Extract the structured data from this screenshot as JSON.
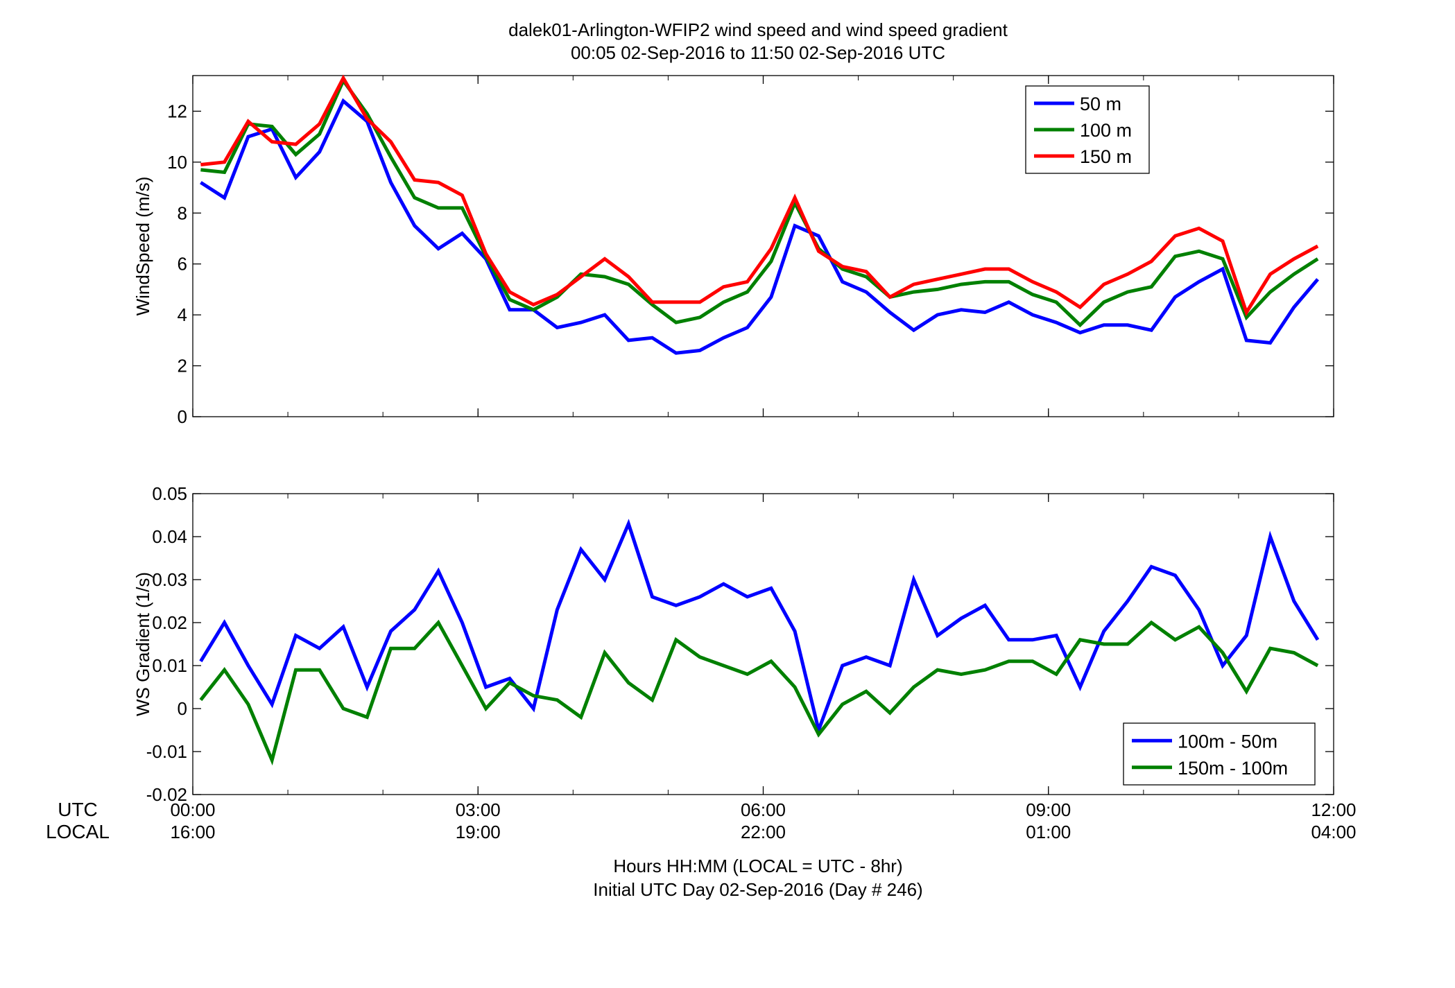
{
  "title": {
    "line1": "dalek01-Arlington-WFIP2  wind speed and wind speed gradient",
    "line2": "00:05 02-Sep-2016 to 11:50 02-Sep-2016  UTC"
  },
  "x_axis": {
    "row_labels": [
      "UTC",
      "LOCAL"
    ],
    "ticks_utc": [
      "00:00",
      "03:00",
      "06:00",
      "09:00",
      "12:00"
    ],
    "ticks_local": [
      "16:00",
      "19:00",
      "22:00",
      "01:00",
      "04:00"
    ],
    "xlabel_line1": "Hours HH:MM  (LOCAL = UTC - 8hr)",
    "xlabel_line2": "Initial UTC Day 02-Sep-2016 (Day # 246)"
  },
  "colors": {
    "blue": "#0000ff",
    "green": "#008000",
    "red": "#ff0000",
    "axis": "#000000"
  },
  "chart_data": [
    {
      "type": "line",
      "ylabel": "WindSpeed (m/s)",
      "xlim": [
        0,
        12
      ],
      "ylim": [
        0,
        13.4
      ],
      "yticks": [
        0,
        2,
        4,
        6,
        8,
        10,
        12
      ],
      "xticks": [
        0,
        3,
        6,
        9,
        12
      ],
      "legend_position": "top-right",
      "x": [
        0.083,
        0.333,
        0.583,
        0.833,
        1.083,
        1.333,
        1.583,
        1.833,
        2.083,
        2.333,
        2.583,
        2.833,
        3.083,
        3.333,
        3.583,
        3.833,
        4.083,
        4.333,
        4.583,
        4.833,
        5.083,
        5.333,
        5.583,
        5.833,
        6.083,
        6.333,
        6.583,
        6.833,
        7.083,
        7.333,
        7.583,
        7.833,
        8.083,
        8.333,
        8.583,
        8.833,
        9.083,
        9.333,
        9.583,
        9.833,
        10.083,
        10.333,
        10.583,
        10.833,
        11.083,
        11.333,
        11.583,
        11.833
      ],
      "series": [
        {
          "name": "50 m",
          "color": "#0000ff",
          "values": [
            9.2,
            8.6,
            11.0,
            11.3,
            9.4,
            10.4,
            12.4,
            11.6,
            9.2,
            7.5,
            6.6,
            7.2,
            6.2,
            4.2,
            4.2,
            3.5,
            3.7,
            4.0,
            3.0,
            3.1,
            2.5,
            2.6,
            3.1,
            3.5,
            4.7,
            7.5,
            7.1,
            5.3,
            4.9,
            4.1,
            3.4,
            4.0,
            4.2,
            4.1,
            4.5,
            4.0,
            3.7,
            3.3,
            3.6,
            3.6,
            3.4,
            4.7,
            5.3,
            5.8,
            3.0,
            2.9,
            4.3,
            5.4
          ]
        },
        {
          "name": "100 m",
          "color": "#008000",
          "values": [
            9.7,
            9.6,
            11.5,
            11.4,
            10.3,
            11.1,
            13.2,
            11.9,
            10.2,
            8.6,
            8.2,
            8.2,
            6.3,
            4.6,
            4.2,
            4.7,
            5.6,
            5.5,
            5.2,
            4.4,
            3.7,
            3.9,
            4.5,
            4.9,
            6.1,
            8.4,
            6.6,
            5.8,
            5.5,
            4.7,
            4.9,
            5.0,
            5.2,
            5.3,
            5.3,
            4.8,
            4.5,
            3.6,
            4.5,
            4.9,
            5.1,
            6.3,
            6.5,
            6.2,
            3.9,
            4.9,
            5.6,
            6.2
          ]
        },
        {
          "name": "150 m",
          "color": "#ff0000",
          "values": [
            9.9,
            10.0,
            11.6,
            10.8,
            10.7,
            11.5,
            13.3,
            11.7,
            10.8,
            9.3,
            9.2,
            8.7,
            6.4,
            4.9,
            4.4,
            4.8,
            5.5,
            6.2,
            5.5,
            4.5,
            4.5,
            4.5,
            5.1,
            5.3,
            6.6,
            8.6,
            6.5,
            5.9,
            5.7,
            4.7,
            5.2,
            5.4,
            5.6,
            5.8,
            5.8,
            5.3,
            4.9,
            4.3,
            5.2,
            5.6,
            6.1,
            7.1,
            7.4,
            6.9,
            4.1,
            5.6,
            6.2,
            6.7
          ]
        }
      ]
    },
    {
      "type": "line",
      "ylabel": "WS Gradient (1/s)",
      "xlim": [
        0,
        12
      ],
      "ylim": [
        -0.02,
        0.05
      ],
      "yticks": [
        -0.02,
        -0.01,
        0,
        0.01,
        0.02,
        0.03,
        0.04,
        0.05
      ],
      "ytick_labels": [
        "-0.02",
        "-0.01",
        "0",
        "0.01",
        "0.02",
        "0.03",
        "0.04",
        "0.05"
      ],
      "xticks": [
        0,
        3,
        6,
        9,
        12
      ],
      "legend_position": "bottom-right",
      "x": [
        0.083,
        0.333,
        0.583,
        0.833,
        1.083,
        1.333,
        1.583,
        1.833,
        2.083,
        2.333,
        2.583,
        2.833,
        3.083,
        3.333,
        3.583,
        3.833,
        4.083,
        4.333,
        4.583,
        4.833,
        5.083,
        5.333,
        5.583,
        5.833,
        6.083,
        6.333,
        6.583,
        6.833,
        7.083,
        7.333,
        7.583,
        7.833,
        8.083,
        8.333,
        8.583,
        8.833,
        9.083,
        9.333,
        9.583,
        9.833,
        10.083,
        10.333,
        10.583,
        10.833,
        11.083,
        11.333,
        11.583,
        11.833
      ],
      "series": [
        {
          "name": "100m - 50m",
          "color": "#0000ff",
          "values": [
            0.011,
            0.02,
            0.01,
            0.001,
            0.017,
            0.014,
            0.019,
            0.005,
            0.018,
            0.023,
            0.032,
            0.02,
            0.005,
            0.007,
            0.0,
            0.023,
            0.037,
            0.03,
            0.043,
            0.026,
            0.024,
            0.026,
            0.029,
            0.026,
            0.028,
            0.018,
            -0.005,
            0.01,
            0.012,
            0.01,
            0.03,
            0.017,
            0.021,
            0.024,
            0.016,
            0.016,
            0.017,
            0.005,
            0.018,
            0.025,
            0.033,
            0.031,
            0.023,
            0.01,
            0.017,
            0.04,
            0.025,
            0.016
          ]
        },
        {
          "name": "150m - 100m",
          "color": "#008000",
          "values": [
            0.002,
            0.009,
            0.001,
            -0.012,
            0.009,
            0.009,
            0.0,
            -0.002,
            0.014,
            0.014,
            0.02,
            0.01,
            0.0,
            0.006,
            0.003,
            0.002,
            -0.002,
            0.013,
            0.006,
            0.002,
            0.016,
            0.012,
            0.01,
            0.008,
            0.011,
            0.005,
            -0.006,
            0.001,
            0.004,
            -0.001,
            0.005,
            0.009,
            0.008,
            0.009,
            0.011,
            0.011,
            0.008,
            0.016,
            0.015,
            0.015,
            0.02,
            0.016,
            0.019,
            0.013,
            0.004,
            0.014,
            0.013,
            0.01
          ]
        }
      ]
    }
  ]
}
